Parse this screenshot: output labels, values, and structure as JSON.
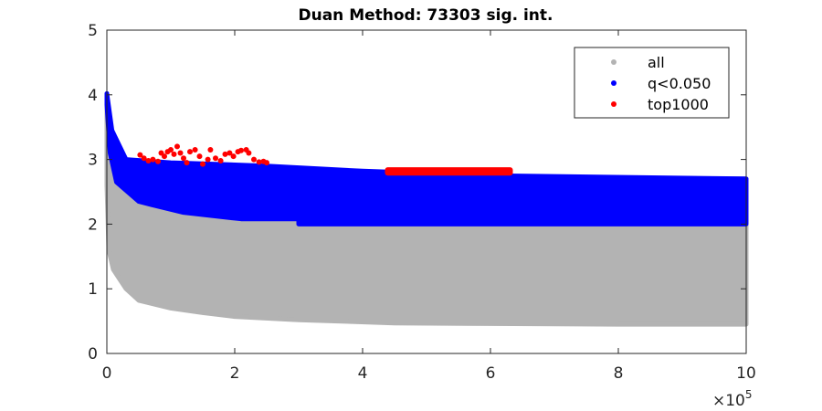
{
  "chart_data": {
    "type": "scatter",
    "title": "Duan Method: 73303 sig. int.",
    "xlabel": "",
    "ylabel": "",
    "x_exponent_label": "×10",
    "x_exponent_power": "5",
    "xlim": [
      0,
      1000000
    ],
    "ylim": [
      0,
      5
    ],
    "x_ticks": [
      0,
      200000,
      400000,
      600000,
      800000,
      1000000
    ],
    "x_tick_labels": [
      "0",
      "2",
      "4",
      "6",
      "8",
      "10"
    ],
    "y_ticks": [
      0,
      1,
      2,
      3,
      4,
      5
    ],
    "y_tick_labels": [
      "0",
      "1",
      "2",
      "3",
      "4",
      "5"
    ],
    "grid": false,
    "legend_position": "top-right",
    "series": [
      {
        "name": "all",
        "color": "#b3b3b3",
        "kind": "band",
        "upper": [
          [
            0,
            4.0
          ],
          [
            5000,
            3.3
          ],
          [
            20000,
            3.0
          ],
          [
            100000,
            2.9
          ],
          [
            400000,
            2.75
          ],
          [
            1000000,
            2.7
          ]
        ],
        "lower": [
          [
            0,
            2.6
          ],
          [
            3000,
            1.6
          ],
          [
            10000,
            1.3
          ],
          [
            30000,
            1.0
          ],
          [
            50000,
            0.82
          ],
          [
            100000,
            0.7
          ],
          [
            150000,
            0.63
          ],
          [
            200000,
            0.57
          ],
          [
            300000,
            0.52
          ],
          [
            450000,
            0.47
          ],
          [
            600000,
            0.46
          ],
          [
            800000,
            0.45
          ],
          [
            1000000,
            0.45
          ]
        ]
      },
      {
        "name": "q<0.050",
        "color": "#0000ff",
        "kind": "band",
        "upper": [
          [
            0,
            4.02
          ],
          [
            8000,
            3.45
          ],
          [
            30000,
            3.0
          ],
          [
            100000,
            2.95
          ],
          [
            250000,
            2.9
          ],
          [
            400000,
            2.82
          ],
          [
            600000,
            2.75
          ],
          [
            1000000,
            2.7
          ]
        ],
        "lower": [
          [
            0,
            3.85
          ],
          [
            5000,
            3.1
          ],
          [
            15000,
            2.65
          ],
          [
            50000,
            2.35
          ],
          [
            70000,
            2.3
          ],
          [
            120000,
            2.18
          ],
          [
            210000,
            2.08
          ],
          [
            300000,
            2.08
          ],
          [
            300001,
            2.0
          ],
          [
            1000000,
            2.0
          ]
        ]
      },
      {
        "name": "top1000",
        "color": "#ff0000",
        "kind": "points",
        "points": [
          [
            52000,
            3.07
          ],
          [
            58000,
            3.02
          ],
          [
            65000,
            2.98
          ],
          [
            72000,
            3.0
          ],
          [
            80000,
            2.97
          ],
          [
            85000,
            3.1
          ],
          [
            90000,
            3.05
          ],
          [
            95000,
            3.12
          ],
          [
            100000,
            3.15
          ],
          [
            105000,
            3.08
          ],
          [
            110000,
            3.2
          ],
          [
            115000,
            3.1
          ],
          [
            120000,
            3.02
          ],
          [
            125000,
            2.95
          ],
          [
            130000,
            3.12
          ],
          [
            138000,
            3.15
          ],
          [
            145000,
            3.05
          ],
          [
            150000,
            2.93
          ],
          [
            158000,
            3.0
          ],
          [
            162000,
            3.15
          ],
          [
            170000,
            3.02
          ],
          [
            178000,
            2.98
          ],
          [
            185000,
            3.08
          ],
          [
            192000,
            3.1
          ],
          [
            198000,
            3.05
          ],
          [
            205000,
            3.12
          ],
          [
            210000,
            3.14
          ],
          [
            218000,
            3.15
          ],
          [
            222000,
            3.1
          ],
          [
            230000,
            3.0
          ],
          [
            238000,
            2.96
          ],
          [
            245000,
            2.97
          ],
          [
            250000,
            2.95
          ]
        ],
        "cluster": {
          "x_range": [
            435000,
            635000
          ],
          "y_range": [
            2.75,
            2.88
          ]
        }
      }
    ]
  }
}
